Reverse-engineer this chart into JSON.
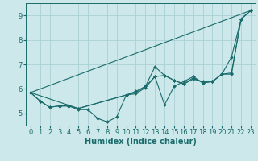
{
  "background_color": "#cce8ea",
  "grid_color": "#aad0d3",
  "line_color": "#1a6b6b",
  "xlabel": "Humidex (Indice chaleur)",
  "xlabel_fontsize": 7,
  "tick_fontsize": 6,
  "xlim": [
    -0.5,
    23.5
  ],
  "ylim": [
    4.5,
    9.5
  ],
  "yticks": [
    5,
    6,
    7,
    8,
    9
  ],
  "xticks": [
    0,
    1,
    2,
    3,
    4,
    5,
    6,
    7,
    8,
    9,
    10,
    11,
    12,
    13,
    14,
    15,
    16,
    17,
    18,
    19,
    20,
    21,
    22,
    23
  ],
  "lines": [
    {
      "x": [
        0,
        1,
        2,
        3,
        4,
        5,
        6,
        7,
        8,
        9,
        10,
        11,
        12,
        13,
        14,
        15,
        16,
        17,
        18,
        19,
        20,
        21,
        22,
        23
      ],
      "y": [
        5.85,
        5.5,
        5.25,
        5.3,
        5.3,
        5.15,
        5.15,
        4.8,
        4.65,
        4.85,
        5.75,
        5.9,
        6.1,
        6.5,
        5.35,
        6.1,
        6.3,
        6.5,
        6.25,
        6.3,
        6.6,
        7.3,
        8.85,
        9.2
      ],
      "has_markers": true
    },
    {
      "x": [
        0,
        1,
        2,
        3,
        4,
        5,
        10,
        11,
        12,
        13,
        14,
        15,
        16,
        17,
        18,
        19,
        20,
        21,
        22,
        23
      ],
      "y": [
        5.85,
        5.5,
        5.25,
        5.3,
        5.3,
        5.2,
        5.75,
        5.85,
        6.1,
        6.9,
        6.55,
        6.35,
        6.2,
        6.4,
        6.3,
        6.3,
        6.6,
        6.6,
        8.85,
        9.2
      ],
      "has_markers": true
    },
    {
      "x": [
        0,
        23
      ],
      "y": [
        5.85,
        9.2
      ],
      "has_markers": false
    },
    {
      "x": [
        0,
        5,
        10,
        11,
        12,
        13,
        14,
        15,
        16,
        17,
        18,
        19,
        20,
        21,
        22,
        23
      ],
      "y": [
        5.85,
        5.2,
        5.75,
        5.8,
        6.05,
        6.5,
        6.55,
        6.35,
        6.2,
        6.45,
        6.25,
        6.3,
        6.6,
        6.65,
        8.85,
        9.2
      ],
      "has_markers": true
    }
  ]
}
